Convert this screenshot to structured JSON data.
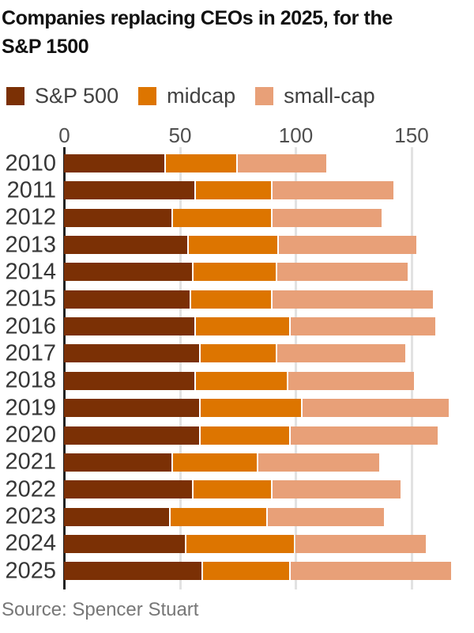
{
  "title": {
    "line1": "Companies replacing CEOs in 2025, for the",
    "line2": "S&P 1500"
  },
  "source": "Source: Spencer Stuart",
  "colors": {
    "sp500": "#7B3005",
    "midcap": "#DD7500",
    "smallcap": "#E8A078",
    "axis": "#222222",
    "gridline": "#E2E2E2",
    "title_text": "#111111",
    "axis_text": "#4F4F4F",
    "year_text": "#363636",
    "source_text": "#777777"
  },
  "chart_data": {
    "type": "bar",
    "orientation": "horizontal",
    "stacked": true,
    "title": "Companies replacing CEOs in 2025, for the S&P 1500",
    "categories": [
      "2010",
      "2011",
      "2012",
      "2013",
      "2014",
      "2015",
      "2016",
      "2017",
      "2018",
      "2019",
      "2020",
      "2021",
      "2022",
      "2023",
      "2024",
      "2025"
    ],
    "series": [
      {
        "name": "S&P 500",
        "color": "#7B3005",
        "values": [
          44,
          57,
          47,
          54,
          56,
          55,
          57,
          59,
          57,
          59,
          59,
          47,
          56,
          46,
          53,
          60
        ]
      },
      {
        "name": "midcap",
        "color": "#DD7500",
        "values": [
          31,
          33,
          43,
          39,
          36,
          35,
          41,
          33,
          40,
          44,
          39,
          37,
          34,
          42,
          47,
          38
        ]
      },
      {
        "name": "small-cap",
        "color": "#E8A078",
        "values": [
          39,
          53,
          48,
          60,
          57,
          70,
          63,
          56,
          55,
          64,
          64,
          53,
          56,
          51,
          57,
          70
        ]
      }
    ],
    "totals": [
      114,
      143,
      138,
      153,
      149,
      160,
      161,
      148,
      152,
      167,
      162,
      137,
      146,
      139,
      157,
      168
    ],
    "x_ticks": [
      0,
      50,
      100,
      150
    ],
    "xlim": [
      0,
      175
    ],
    "xlabel": "",
    "ylabel": "",
    "grid": true,
    "legend_position": "top"
  }
}
